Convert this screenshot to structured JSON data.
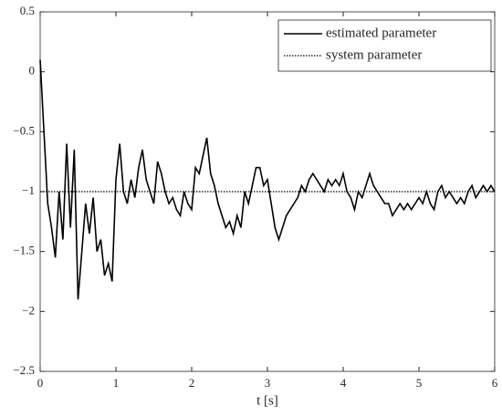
{
  "chart_data": {
    "type": "line",
    "xlabel": "t [s]",
    "xlim": [
      0,
      6
    ],
    "ylim": [
      -2.5,
      0.5
    ],
    "xticks": [
      0,
      1,
      2,
      3,
      4,
      5,
      6
    ],
    "yticks": [
      0.5,
      0,
      {
        "value": -0.5,
        "label": "−0.5"
      },
      {
        "value": -1,
        "label": "−1"
      },
      {
        "value": -1.5,
        "label": "−1.5"
      },
      {
        "value": -2,
        "label": "−2"
      },
      {
        "value": -2.5,
        "label": "−2.5"
      }
    ],
    "legend": "northeast",
    "grid": false,
    "series": [
      {
        "name": "estimated parameter",
        "color": "#000000",
        "style": "solid",
        "x": [
          0,
          0.05,
          0.1,
          0.15,
          0.2,
          0.25,
          0.3,
          0.35,
          0.4,
          0.45,
          0.5,
          0.55,
          0.6,
          0.65,
          0.7,
          0.75,
          0.8,
          0.85,
          0.9,
          0.95,
          1,
          1.05,
          1.1,
          1.15,
          1.2,
          1.25,
          1.3,
          1.35,
          1.4,
          1.45,
          1.5,
          1.55,
          1.6,
          1.65,
          1.7,
          1.75,
          1.8,
          1.85,
          1.9,
          1.95,
          2,
          2.05,
          2.1,
          2.15,
          2.2,
          2.25,
          2.3,
          2.35,
          2.4,
          2.45,
          2.5,
          2.55,
          2.6,
          2.65,
          2.7,
          2.75,
          2.8,
          2.85,
          2.9,
          2.95,
          3,
          3.05,
          3.1,
          3.15,
          3.2,
          3.25,
          3.3,
          3.35,
          3.4,
          3.45,
          3.5,
          3.55,
          3.6,
          3.65,
          3.7,
          3.75,
          3.8,
          3.85,
          3.9,
          3.95,
          4,
          4.05,
          4.1,
          4.15,
          4.2,
          4.25,
          4.3,
          4.35,
          4.4,
          4.45,
          4.5,
          4.55,
          4.6,
          4.65,
          4.7,
          4.75,
          4.8,
          4.85,
          4.9,
          4.95,
          5,
          5.05,
          5.1,
          5.15,
          5.2,
          5.25,
          5.3,
          5.35,
          5.4,
          5.45,
          5.5,
          5.55,
          5.6,
          5.65,
          5.7,
          5.75,
          5.8,
          5.85,
          5.9,
          5.95,
          6
        ],
        "values": [
          0.1,
          -0.5,
          -1.1,
          -1.3,
          -1.55,
          -1.0,
          -1.4,
          -0.6,
          -1.3,
          -0.65,
          -1.9,
          -1.5,
          -1.1,
          -1.35,
          -1.05,
          -1.5,
          -1.4,
          -1.7,
          -1.6,
          -1.75,
          -0.9,
          -0.6,
          -1.0,
          -1.1,
          -0.9,
          -1.05,
          -0.8,
          -0.65,
          -0.9,
          -1.0,
          -1.1,
          -0.75,
          -0.85,
          -1.0,
          -1.1,
          -1.05,
          -1.15,
          -1.2,
          -1.0,
          -1.1,
          -1.15,
          -0.8,
          -0.85,
          -0.7,
          -0.55,
          -0.85,
          -0.95,
          -1.1,
          -1.2,
          -1.3,
          -1.25,
          -1.35,
          -1.2,
          -1.3,
          -1.0,
          -1.1,
          -0.95,
          -0.8,
          -0.8,
          -0.95,
          -0.9,
          -1.1,
          -1.3,
          -1.4,
          -1.3,
          -1.2,
          -1.15,
          -1.1,
          -1.05,
          -0.95,
          -1.0,
          -0.9,
          -0.85,
          -0.9,
          -0.95,
          -1.0,
          -0.9,
          -0.95,
          -0.9,
          -0.95,
          -0.85,
          -1.0,
          -1.05,
          -1.15,
          -1.0,
          -1.05,
          -0.95,
          -0.85,
          -0.95,
          -1.0,
          -1.05,
          -1.1,
          -1.1,
          -1.2,
          -1.15,
          -1.1,
          -1.15,
          -1.1,
          -1.15,
          -1.1,
          -1.05,
          -1.1,
          -1.0,
          -1.1,
          -1.15,
          -1.0,
          -0.95,
          -1.05,
          -1.0,
          -1.05,
          -1.1,
          -1.05,
          -1.1,
          -1.0,
          -0.95,
          -1.05,
          -1.0,
          -0.95,
          -1.0,
          -0.95,
          -1.0
        ]
      },
      {
        "name": "system parameter",
        "color": "#000000",
        "style": "dotted",
        "x": [
          0,
          6
        ],
        "values": [
          -1,
          -1
        ]
      }
    ]
  }
}
